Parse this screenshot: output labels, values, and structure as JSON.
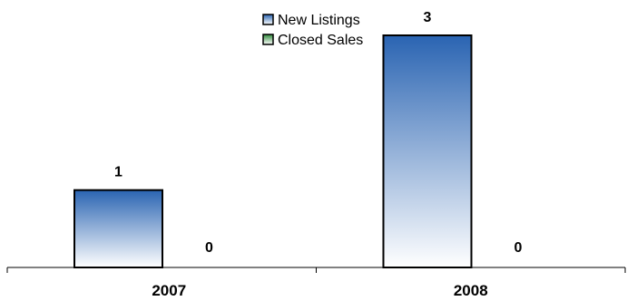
{
  "chart_data": {
    "type": "bar",
    "categories": [
      "2007",
      "2008"
    ],
    "series": [
      {
        "name": "New Listings",
        "values": [
          1,
          3
        ]
      },
      {
        "name": "Closed Sales",
        "values": [
          0,
          0
        ]
      }
    ],
    "ylim": [
      0,
      3
    ],
    "grid": false,
    "legend_position": "top-center",
    "colors": {
      "new_listings_top": "#2a64b2",
      "new_listings_bottom": "#ffffff",
      "closed_sales_top": "#2f8a3a",
      "closed_sales_bottom": "#ffffff",
      "bar_outline": "#000000",
      "axis": "#000000"
    }
  }
}
